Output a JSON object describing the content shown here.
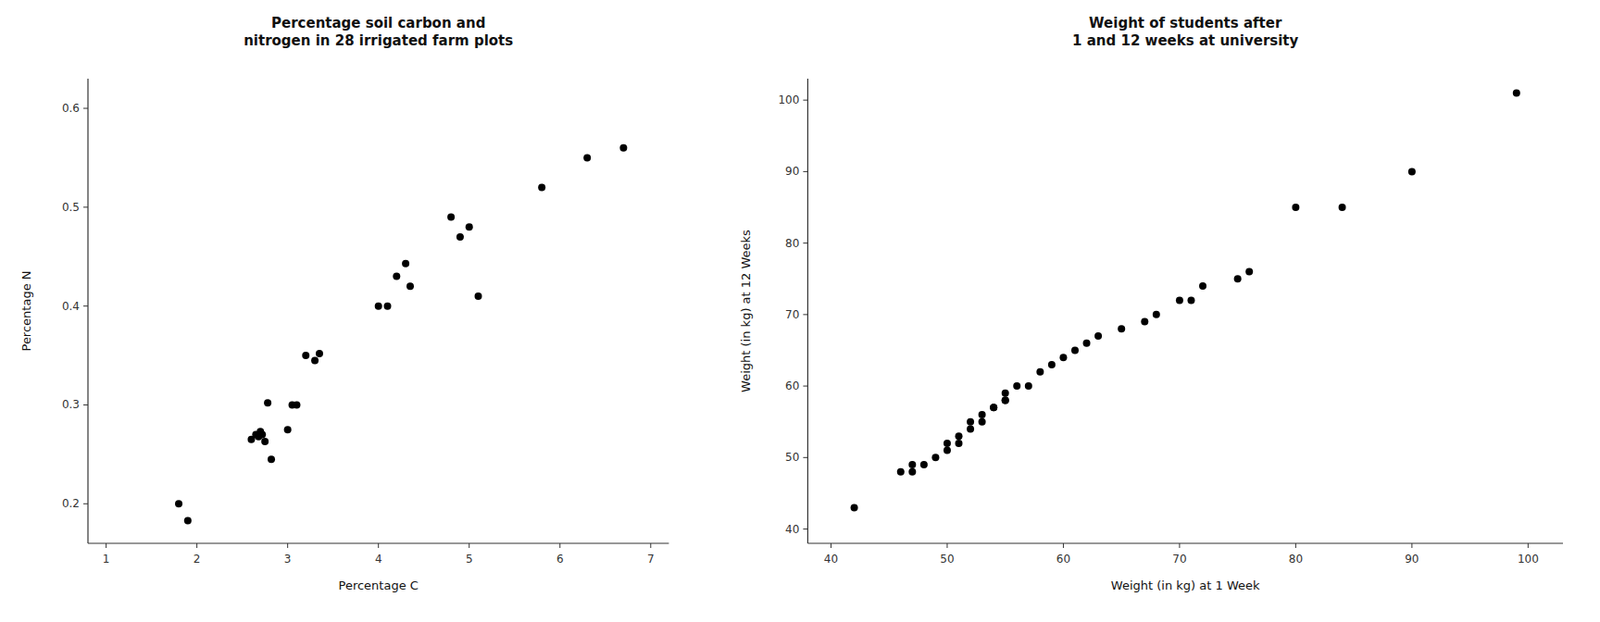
{
  "chart_data": [
    {
      "type": "scatter",
      "title": "Percentage soil carbon and\nnitrogen in 28 irrigated farm plots",
      "xlabel": "Percentage C",
      "ylabel": "Percentage N",
      "xlim": [
        0.8,
        7.2
      ],
      "ylim": [
        0.16,
        0.63
      ],
      "xticks": [
        1,
        2,
        3,
        4,
        5,
        6,
        7
      ],
      "yticks": [
        0.2,
        0.3,
        0.4,
        0.5,
        0.6
      ],
      "color": "black",
      "grid": false,
      "x": [
        1.8,
        1.9,
        2.6,
        2.65,
        2.68,
        2.7,
        2.72,
        2.75,
        2.78,
        2.82,
        3.0,
        3.05,
        3.1,
        3.2,
        3.3,
        3.35,
        4.0,
        4.1,
        4.2,
        4.3,
        4.35,
        4.8,
        4.9,
        5.0,
        5.1,
        5.8,
        6.3,
        6.7
      ],
      "y": [
        0.2,
        0.183,
        0.265,
        0.27,
        0.268,
        0.273,
        0.27,
        0.263,
        0.302,
        0.245,
        0.275,
        0.3,
        0.3,
        0.35,
        0.345,
        0.352,
        0.4,
        0.4,
        0.43,
        0.443,
        0.42,
        0.49,
        0.47,
        0.48,
        0.41,
        0.52,
        0.55,
        0.56
      ]
    },
    {
      "type": "scatter",
      "title": "Weight of students after\n1 and 12 weeks at university",
      "xlabel": "Weight (in kg) at 1 Week",
      "ylabel": "Weight (in kg) at 12 Weeks",
      "xlim": [
        38,
        103
      ],
      "ylim": [
        38,
        103
      ],
      "xticks": [
        40,
        50,
        60,
        70,
        80,
        90,
        100
      ],
      "yticks": [
        40,
        50,
        60,
        70,
        80,
        90,
        100
      ],
      "color": "black",
      "grid": false,
      "x": [
        42,
        46,
        47,
        47,
        48,
        49,
        50,
        50,
        51,
        51,
        52,
        52,
        53,
        53,
        54,
        54,
        55,
        55,
        55,
        56,
        57,
        58,
        59,
        60,
        61,
        62,
        63,
        65,
        67,
        68,
        70,
        71,
        72,
        75,
        76,
        80,
        84,
        90,
        99
      ],
      "y": [
        43,
        48,
        48,
        49,
        49,
        50,
        51,
        52,
        52,
        53,
        54,
        55,
        55,
        56,
        57,
        57,
        58,
        58,
        59,
        60,
        60,
        62,
        63,
        64,
        65,
        66,
        67,
        68,
        69,
        70,
        72,
        72,
        74,
        75,
        76,
        85,
        85,
        90,
        101
      ]
    }
  ]
}
